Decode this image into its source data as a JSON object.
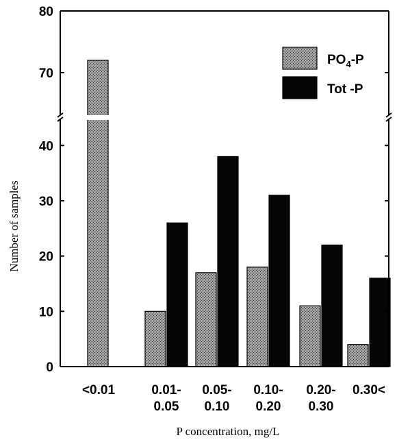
{
  "chart_data": {
    "type": "bar",
    "categories": [
      [
        "<0.01"
      ],
      [
        "0.01-",
        "0.05"
      ],
      [
        "0.05-",
        "0.10"
      ],
      [
        "0.10-",
        "0.20"
      ],
      [
        "0.20-",
        "0.30"
      ],
      [
        "0.30<"
      ]
    ],
    "series": [
      {
        "name": "PO4-P",
        "name_main": "PO",
        "name_sub": "4",
        "name_rest": "-P",
        "values": [
          72,
          10,
          17,
          18,
          11,
          4
        ],
        "color": "#888888",
        "pattern": "dotted"
      },
      {
        "name": "Tot -P",
        "values": [
          null,
          26,
          38,
          31,
          22,
          16
        ],
        "color": "#050505"
      }
    ],
    "xlabel": "P concentration, mg/L",
    "ylabel": "Number of samples",
    "y_ticks_lower": [
      0,
      10,
      20,
      30,
      40
    ],
    "y_ticks_upper": [
      70,
      80
    ],
    "ylim_lower": [
      0,
      44
    ],
    "ylim_upper": [
      64,
      80
    ],
    "axis_break": true,
    "legend_position": "top-right",
    "grid": false
  }
}
